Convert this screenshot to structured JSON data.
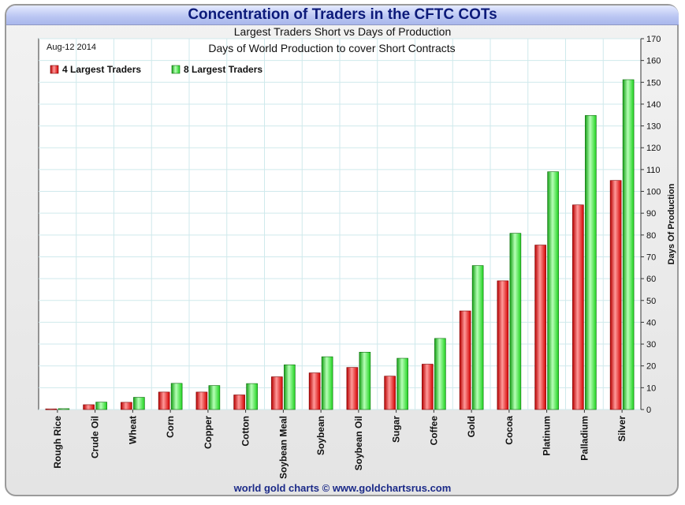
{
  "header": {
    "title": "Concentration of Traders in the CFTC COTs",
    "subtitle": "Largest Traders Short vs Days of Production"
  },
  "footer": {
    "credit": "world gold charts © www.goldchartsrus.com"
  },
  "colors": {
    "series1": "#ee1c1c",
    "series2": "#22e022",
    "title": "#0c1a7a",
    "grid": "#cfe9ec"
  },
  "chart_data": {
    "type": "bar",
    "title": "Days of World Production to cover Short Contracts",
    "date_label": "Aug-12  2014",
    "ylabel": "Days Of Production",
    "xlabel": "",
    "ylim": [
      0,
      170
    ],
    "y_ticks": [
      0,
      10,
      20,
      30,
      40,
      50,
      60,
      70,
      80,
      90,
      100,
      110,
      120,
      130,
      140,
      150,
      160,
      170
    ],
    "y_axis_side": "right",
    "grid": true,
    "legend_position": "top-left",
    "categories": [
      "Rough Rice",
      "Crude Oil",
      "Wheat",
      "Corn",
      "Copper",
      "Cotton",
      "Soybean Meal",
      "Soybean",
      "Soybean Oil",
      "Sugar",
      "Coffee",
      "Gold",
      "Cocoa",
      "Platinum",
      "Palladium",
      "Silver"
    ],
    "series": [
      {
        "name": "4 Largest Traders",
        "values": [
          0.3,
          2.2,
          3.3,
          8,
          8,
          6.7,
          15,
          16.8,
          19.3,
          15.3,
          20.8,
          45.2,
          59,
          75.4,
          93.8,
          105
        ]
      },
      {
        "name": "8 Largest Traders",
        "values": [
          0.4,
          3.4,
          5.6,
          12,
          11,
          11.9,
          20.5,
          24.2,
          26.3,
          23.5,
          32.6,
          66,
          80.8,
          109,
          134.8,
          151.2
        ]
      }
    ]
  }
}
